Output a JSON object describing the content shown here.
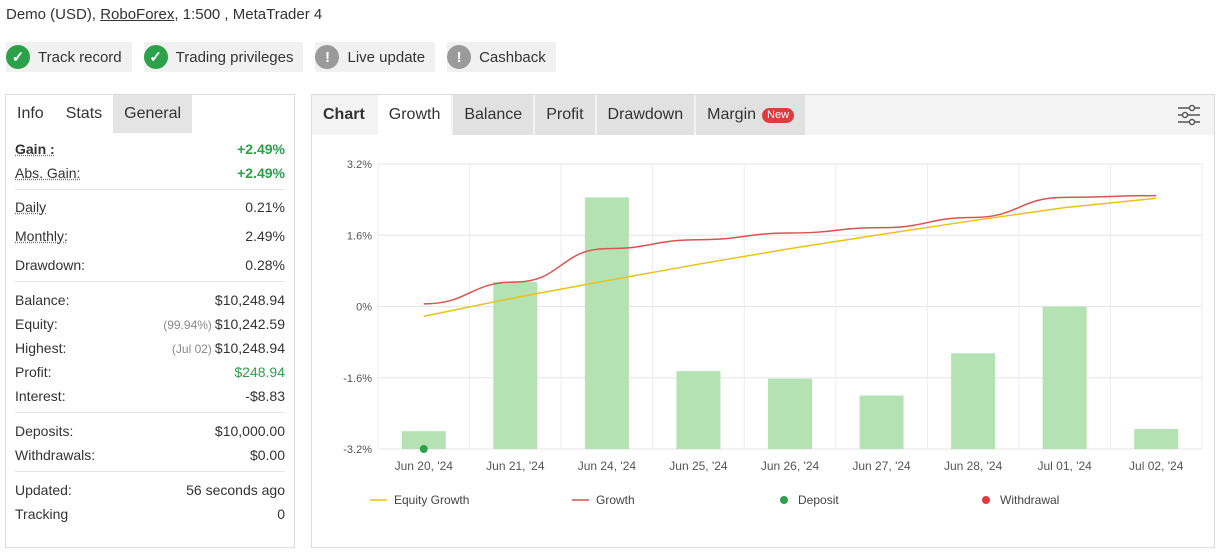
{
  "header": {
    "account_prefix": "Demo (USD),",
    "broker": "RoboForex",
    "account_suffix": ", 1:500 , MetaTrader 4"
  },
  "badges": [
    {
      "label": "Track record",
      "status": "ok"
    },
    {
      "label": "Trading privileges",
      "status": "ok"
    },
    {
      "label": "Live update",
      "status": "warn"
    },
    {
      "label": "Cashback",
      "status": "warn"
    }
  ],
  "left_tabs": [
    "Info",
    "Stats",
    "General"
  ],
  "stats": {
    "gain": {
      "label": "Gain :",
      "value": "+2.49%"
    },
    "abs_gain": {
      "label": "Abs. Gain:",
      "value": "+2.49%"
    },
    "daily": {
      "label": "Daily",
      "value": "0.21%"
    },
    "monthly": {
      "label": "Monthly:",
      "value": "2.49%"
    },
    "drawdown": {
      "label": "Drawdown:",
      "value": "0.28%"
    },
    "balance": {
      "label": "Balance:",
      "value": "$10,248.94"
    },
    "equity": {
      "label": "Equity:",
      "sub": "(99.94%)",
      "value": "$10,242.59"
    },
    "highest": {
      "label": "Highest:",
      "sub": "(Jul 02)",
      "value": "$10,248.94"
    },
    "profit": {
      "label": "Profit:",
      "value": "$248.94"
    },
    "interest": {
      "label": "Interest:",
      "value": "-$8.83"
    },
    "deposits": {
      "label": "Deposits:",
      "value": "$10,000.00"
    },
    "withdrawals": {
      "label": "Withdrawals:",
      "value": "$0.00"
    },
    "updated": {
      "label": "Updated:",
      "value": "56 seconds ago"
    },
    "tracking": {
      "label": "Tracking",
      "value": "0"
    }
  },
  "chart_tabs": {
    "chart": "Chart",
    "growth": "Growth",
    "balance": "Balance",
    "profit": "Profit",
    "drawdown": "Drawdown",
    "margin": "Margin",
    "new_badge": "New"
  },
  "colors": {
    "bar": "#b5e2b3",
    "growth": "#d9534f",
    "equity_growth": "#e8c21c",
    "deposit": "#2da04a",
    "withdrawal": "#e0393e"
  },
  "chart_data": {
    "type": "bar",
    "categories": [
      "Jun 20, '24",
      "Jun 21, '24",
      "Jun 24, '24",
      "Jun 25, '24",
      "Jun 26, '24",
      "Jun 27, '24",
      "Jun 28, '24",
      "Jul 01, '24",
      "Jul 02, '24"
    ],
    "ylim": [
      -3.2,
      3.2
    ],
    "y_ticks": [
      "3.2%",
      "1.6%",
      "0%",
      "-1.6%",
      "-3.2%"
    ],
    "bars": [
      -2.8,
      0.55,
      2.45,
      -1.45,
      -1.62,
      -2.0,
      -1.05,
      0.0,
      -2.75
    ],
    "series": [
      {
        "name": "Equity Growth",
        "type": "line",
        "values": [
          -0.22,
          0.2,
          0.58,
          0.95,
          1.3,
          1.62,
          1.93,
          2.22,
          2.43
        ]
      },
      {
        "name": "Growth",
        "type": "line",
        "values": [
          0.06,
          0.55,
          1.3,
          1.5,
          1.65,
          1.77,
          2.0,
          2.45,
          2.49
        ]
      }
    ],
    "deposit_points": [
      {
        "category": "Jun 20, '24",
        "value": -3.2
      }
    ],
    "legend": [
      "Equity Growth",
      "Growth",
      "Deposit",
      "Withdrawal"
    ],
    "legend_position": "bottom",
    "grid": true
  }
}
